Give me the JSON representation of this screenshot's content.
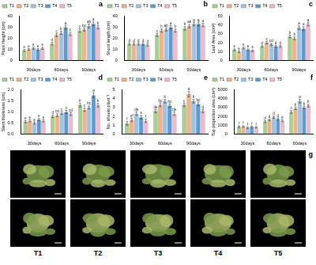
{
  "chart_data": [
    {
      "type": "bar",
      "title": "a",
      "y_label": "Plant Height (cm)",
      "categories": [
        "30days",
        "60days",
        "90days"
      ],
      "ylim": [
        0,
        40
      ],
      "yticks": [
        0,
        10,
        20,
        30,
        40
      ],
      "grid": false,
      "legend": "top",
      "series": [
        {
          "name": "T1",
          "color": "#a9d18e",
          "values": [
            9,
            15,
            27
          ],
          "errors": [
            0.8,
            1.2,
            1.5
          ],
          "letters": [
            "e",
            "d",
            "c"
          ]
        },
        {
          "name": "T2",
          "color": "#f4b183",
          "values": [
            10,
            23,
            28
          ],
          "errors": [
            0.8,
            1.5,
            1.5
          ],
          "letters": [
            "e",
            "c",
            "bc"
          ]
        },
        {
          "name": "T3",
          "color": "#9dc3e6",
          "values": [
            11,
            25,
            31
          ],
          "errors": [
            0.9,
            1.5,
            1.8
          ],
          "letters": [
            "e",
            "b",
            "ab"
          ]
        },
        {
          "name": "T4",
          "color": "#5b9bd5",
          "values": [
            10,
            30,
            33
          ],
          "errors": [
            0.8,
            1.6,
            1.8
          ],
          "letters": [
            "e",
            "a",
            "a"
          ]
        },
        {
          "name": "T5",
          "color": "#f4b8cc",
          "values": [
            11,
            24,
            30
          ],
          "errors": [
            0.9,
            1.4,
            1.6
          ],
          "letters": [
            "e",
            "c",
            "b"
          ]
        }
      ]
    },
    {
      "type": "bar",
      "title": "b",
      "y_label": "Shoot length (cm)",
      "categories": [
        "30days",
        "60days",
        "90days"
      ],
      "ylim": [
        0,
        40
      ],
      "yticks": [
        0,
        10,
        20,
        30,
        40
      ],
      "grid": false,
      "legend": "top",
      "series": [
        {
          "name": "T1",
          "color": "#a9d18e",
          "values": [
            15,
            23,
            29
          ],
          "errors": [
            1,
            1.2,
            1.5
          ],
          "letters": [
            "d",
            "c",
            "b"
          ]
        },
        {
          "name": "T2",
          "color": "#f4b183",
          "values": [
            15,
            27,
            31
          ],
          "errors": [
            1,
            1.4,
            1.5
          ],
          "letters": [
            "d",
            "b",
            "ab"
          ]
        },
        {
          "name": "T3",
          "color": "#9dc3e6",
          "values": [
            15,
            28,
            33
          ],
          "errors": [
            1,
            1.4,
            1.6
          ],
          "letters": [
            "d",
            "ab",
            "a"
          ]
        },
        {
          "name": "T4",
          "color": "#5b9bd5",
          "values": [
            15,
            30,
            33
          ],
          "errors": [
            1,
            1.5,
            1.6
          ],
          "letters": [
            "d",
            "a",
            "a"
          ]
        },
        {
          "name": "T5",
          "color": "#f4b8cc",
          "values": [
            14,
            27,
            32
          ],
          "errors": [
            1,
            1.3,
            1.5
          ],
          "letters": [
            "d",
            "b",
            "a"
          ]
        }
      ]
    },
    {
      "type": "bar",
      "title": "c",
      "y_label": "Leaf Area (cm²)",
      "categories": [
        "30days",
        "60days",
        "90days"
      ],
      "ylim": [
        0,
        50
      ],
      "yticks": [
        0,
        10,
        20,
        30,
        40,
        50
      ],
      "grid": false,
      "legend": "top",
      "series": [
        {
          "name": "T1",
          "color": "#a9d18e",
          "values": [
            12,
            16,
            27
          ],
          "errors": [
            1,
            1.2,
            1.5
          ],
          "letters": [
            "e",
            "d",
            "b"
          ]
        },
        {
          "name": "T2",
          "color": "#f4b183",
          "values": [
            10,
            20,
            25
          ],
          "errors": [
            1,
            1.3,
            1.5
          ],
          "letters": [
            "e",
            "c",
            "b"
          ]
        },
        {
          "name": "T3",
          "color": "#9dc3e6",
          "values": [
            14,
            18,
            37
          ],
          "errors": [
            1,
            1.2,
            2
          ],
          "letters": [
            "e",
            "cd",
            "a"
          ]
        },
        {
          "name": "T4",
          "color": "#5b9bd5",
          "values": [
            12,
            16,
            36
          ],
          "errors": [
            1,
            1.2,
            2
          ],
          "letters": [
            "e",
            "d",
            "a"
          ]
        },
        {
          "name": "T5",
          "color": "#f4b8cc",
          "values": [
            11,
            16,
            41
          ],
          "errors": [
            1,
            1.2,
            2
          ],
          "letters": [
            "e",
            "d",
            "a"
          ]
        }
      ]
    },
    {
      "type": "bar",
      "title": "d",
      "y_label": "Stem thickness (cm)",
      "categories": [
        "30days",
        "60days",
        "90days"
      ],
      "ylim": [
        0,
        2
      ],
      "yticks": [
        {
          "value": 0,
          "label": "0.0"
        },
        {
          "value": 0.5,
          "label": "0.5"
        },
        {
          "value": 1,
          "label": "1.0"
        },
        {
          "value": 1.5,
          "label": "1.5"
        },
        {
          "value": 2,
          "label": "2.0"
        }
      ],
      "grid": false,
      "legend": "top",
      "series": [
        {
          "name": "T1",
          "color": "#a9d18e",
          "values": [
            0.55,
            0.8,
            1.3
          ],
          "errors": [
            0.05,
            0.06,
            0.08
          ],
          "letters": [
            "e",
            "d",
            "b"
          ]
        },
        {
          "name": "T2",
          "color": "#f4b183",
          "values": [
            0.6,
            0.85,
            1.1
          ],
          "errors": [
            0.05,
            0.06,
            0.07
          ],
          "letters": [
            "e",
            "cd",
            "c"
          ]
        },
        {
          "name": "T3",
          "color": "#9dc3e6",
          "values": [
            0.5,
            0.95,
            1.2
          ],
          "errors": [
            0.05,
            0.06,
            0.07
          ],
          "letters": [
            "e",
            "c",
            "bc"
          ]
        },
        {
          "name": "T4",
          "color": "#5b9bd5",
          "values": [
            0.65,
            1,
            1.75
          ],
          "errors": [
            0.05,
            0.07,
            0.1
          ],
          "letters": [
            "e",
            "c",
            "a"
          ]
        },
        {
          "name": "T5",
          "color": "#f4b8cc",
          "values": [
            0.6,
            0.9,
            1.3
          ],
          "errors": [
            0.05,
            0.06,
            0.08
          ],
          "letters": [
            "e",
            "cd",
            "b"
          ]
        }
      ]
    },
    {
      "type": "bar",
      "title": "e",
      "y_label": "No. shoots plant⁻¹",
      "categories": [
        "30days",
        "60days",
        "90days"
      ],
      "ylim": [
        0,
        5
      ],
      "yticks": [
        0,
        1,
        2,
        3,
        4,
        5
      ],
      "grid": false,
      "legend": "top",
      "series": [
        {
          "name": "T1",
          "color": "#a9d18e",
          "values": [
            1.2,
            2.6,
            3.3
          ],
          "errors": [
            0.2,
            0.2,
            0.2
          ],
          "letters": [
            "f",
            "de",
            "c"
          ]
        },
        {
          "name": "T2",
          "color": "#f4b183",
          "values": [
            1.6,
            3.3,
            4.5
          ],
          "errors": [
            0.2,
            0.2,
            0.3
          ],
          "letters": [
            "ef",
            "bc",
            "a"
          ]
        },
        {
          "name": "T3",
          "color": "#9dc3e6",
          "values": [
            2.3,
            3.7,
            3.7
          ],
          "errors": [
            0.2,
            0.2,
            0.2
          ],
          "letters": [
            "de",
            "b",
            "b"
          ]
        },
        {
          "name": "T4",
          "color": "#5b9bd5",
          "values": [
            1.9,
            3.2,
            3.4
          ],
          "errors": [
            0.2,
            0.2,
            0.2
          ],
          "letters": [
            "e",
            "bc",
            "bc"
          ]
        },
        {
          "name": "T5",
          "color": "#f4b8cc",
          "values": [
            1.5,
            2.3,
            2.6
          ],
          "errors": [
            0.2,
            0.2,
            0.2
          ],
          "letters": [
            "f",
            "de",
            "d"
          ]
        }
      ]
    },
    {
      "type": "bar",
      "title": "f",
      "y_label": "Top projection area (cm²)",
      "categories": [
        "30days",
        "60days",
        "90days"
      ],
      "ylim": [
        0,
        5000
      ],
      "yticks": [
        0,
        1000,
        2000,
        3000,
        4000,
        5000
      ],
      "grid": false,
      "legend": "top",
      "series": [
        {
          "name": "T1",
          "color": "#a9d18e",
          "values": [
            800,
            1400,
            2500
          ],
          "errors": [
            80,
            100,
            150
          ],
          "letters": [
            "f",
            "d",
            "c"
          ]
        },
        {
          "name": "T2",
          "color": "#f4b183",
          "values": [
            850,
            1600,
            2900
          ],
          "errors": [
            80,
            100,
            150
          ],
          "letters": [
            "f",
            "d",
            "b"
          ]
        },
        {
          "name": "T3",
          "color": "#9dc3e6",
          "values": [
            700,
            1900,
            3700
          ],
          "errors": [
            80,
            120,
            200
          ],
          "letters": [
            "f",
            "d",
            "a"
          ]
        },
        {
          "name": "T4",
          "color": "#5b9bd5",
          "values": [
            800,
            1700,
            3000
          ],
          "errors": [
            80,
            100,
            150
          ],
          "letters": [
            "f",
            "d",
            "b"
          ]
        },
        {
          "name": "T5",
          "color": "#f4b8cc",
          "values": [
            750,
            1500,
            3200
          ],
          "errors": [
            80,
            100,
            150
          ],
          "letters": [
            "f",
            "d",
            "b"
          ]
        }
      ]
    }
  ],
  "photo_panel": {
    "label": "g",
    "treatments": [
      "T1",
      "T2",
      "T3",
      "T4",
      "T5"
    ]
  }
}
